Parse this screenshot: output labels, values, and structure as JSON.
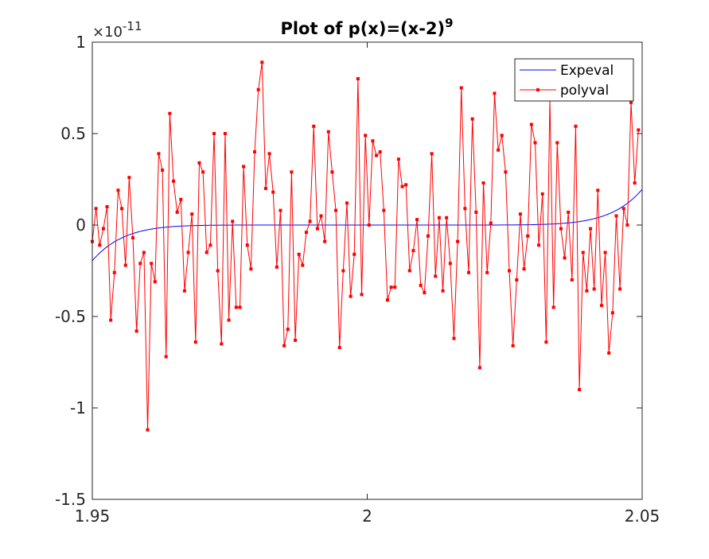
{
  "chart_data": {
    "type": "line",
    "title": "Plot of p(x)=(x-2)",
    "title_superscript": "9",
    "y_multiplier_base": "×10",
    "y_multiplier_exp": "-11",
    "xlim": [
      1.95,
      2.05
    ],
    "ylim": [
      -1.5,
      1
    ],
    "x_ticks": [
      1.95,
      2,
      2.05
    ],
    "x_tick_labels": [
      "1.95",
      "2",
      "2.05"
    ],
    "y_ticks": [
      -1.5,
      -1,
      -0.5,
      0,
      0.5,
      1
    ],
    "y_tick_labels": [
      "-1.5",
      "-1",
      "-0.5",
      "0",
      "0.5",
      "1"
    ],
    "legend_position": "top-right",
    "grid": false,
    "series": [
      {
        "name": "Expeval",
        "color": "#0000ff",
        "marker": "none",
        "function": "(x-2)^9",
        "scale": 1e-11
      },
      {
        "name": "polyval",
        "color": "#ff0000",
        "marker": "square",
        "x_start": 1.95,
        "x_step": 0.0006711,
        "values": [
          -0.09,
          0.09,
          -0.11,
          -0.02,
          0.1,
          -0.52,
          -0.26,
          0.19,
          0.09,
          -0.22,
          0.26,
          -0.07,
          -0.58,
          -0.21,
          -0.15,
          -1.12,
          -0.21,
          -0.31,
          0.39,
          0.3,
          -0.72,
          0.61,
          0.24,
          0.07,
          0.14,
          -0.36,
          -0.15,
          0.06,
          -0.64,
          0.34,
          0.29,
          -0.15,
          -0.11,
          0.5,
          -0.25,
          -0.65,
          0.5,
          -0.52,
          0.02,
          -0.45,
          -0.45,
          0.32,
          -0.11,
          -0.24,
          0.4,
          0.74,
          0.89,
          0.2,
          0.39,
          0.18,
          -0.23,
          0.08,
          -0.66,
          -0.57,
          0.29,
          -0.63,
          -0.16,
          -0.22,
          -0.04,
          0.02,
          0.54,
          -0.02,
          0.05,
          -0.09,
          0.51,
          0.29,
          0.08,
          -0.67,
          -0.25,
          0.12,
          -0.39,
          -0.16,
          0.8,
          -0.38,
          0.49,
          0.0,
          0.46,
          0.38,
          0.4,
          0.08,
          -0.41,
          -0.34,
          -0.34,
          0.36,
          0.21,
          0.22,
          -0.25,
          -0.14,
          0.03,
          -0.33,
          -0.37,
          -0.06,
          0.39,
          -0.28,
          0.04,
          -0.36,
          0.04,
          -0.21,
          -0.62,
          -0.09,
          0.75,
          0.09,
          -0.26,
          0.58,
          0.07,
          -0.78,
          0.23,
          -0.26,
          0.01,
          0.72,
          0.41,
          0.49,
          0.29,
          -0.25,
          -0.66,
          -0.3,
          0.06,
          -0.24,
          -0.06,
          0.55,
          0.45,
          -0.11,
          0.17,
          -0.64,
          0.69,
          -0.45,
          0.45,
          -0.02,
          -0.18,
          0.07,
          -0.3,
          0.54,
          -0.9,
          -0.15,
          -0.36,
          -0.02,
          -0.35,
          0.19,
          -0.44,
          -0.15,
          -0.7,
          -0.48,
          0.05,
          -0.35,
          0.09,
          0.0,
          0.67,
          0.23,
          0.52
        ]
      }
    ]
  }
}
